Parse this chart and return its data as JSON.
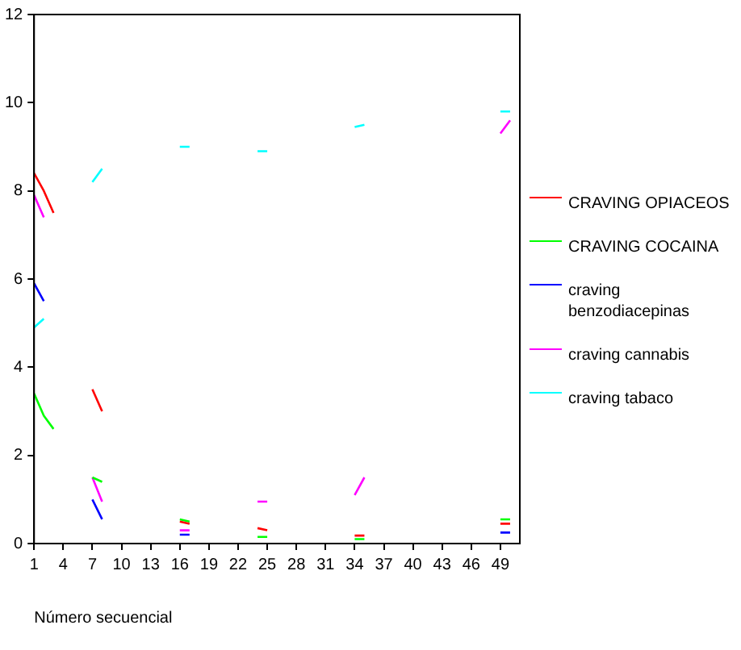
{
  "chart_data": {
    "type": "line",
    "xlabel": "Número secuencial",
    "x": [
      1,
      2,
      3,
      4,
      7,
      8,
      9,
      16,
      17,
      18,
      24,
      25,
      26,
      34,
      35,
      36,
      49,
      50
    ],
    "xlim": [
      1,
      51
    ],
    "xticks": [
      1,
      4,
      7,
      10,
      13,
      16,
      19,
      22,
      25,
      28,
      31,
      34,
      37,
      40,
      43,
      46,
      49
    ],
    "ylim": [
      0,
      12
    ],
    "yticks": [
      0,
      2,
      4,
      6,
      8,
      10,
      12
    ],
    "grid": false,
    "legend": "right",
    "marker": "none",
    "line_style": "solid",
    "series": [
      {
        "name": "CRAVING OPIACEOS",
        "color": "#ff0000",
        "values": [
          8.4,
          8.0,
          7.5,
          null,
          3.5,
          3.0,
          null,
          0.5,
          0.45,
          null,
          0.35,
          0.3,
          null,
          0.18,
          0.18,
          null,
          0.45,
          0.45
        ]
      },
      {
        "name": "CRAVING COCAINA",
        "color": "#00ff00",
        "values": [
          3.4,
          2.9,
          2.6,
          null,
          1.5,
          1.4,
          null,
          0.55,
          0.5,
          null,
          0.15,
          0.15,
          null,
          0.1,
          0.1,
          null,
          0.55,
          0.55
        ]
      },
      {
        "name": "craving benzodiacepinas",
        "color": "#0000ff",
        "values": [
          5.9,
          5.5,
          null,
          null,
          1.0,
          0.55,
          null,
          0.2,
          0.2,
          null,
          null,
          null,
          null,
          null,
          null,
          null,
          0.25,
          0.25
        ]
      },
      {
        "name": "craving cannabis",
        "color": "#ff00ff",
        "values": [
          7.9,
          7.4,
          null,
          null,
          1.5,
          0.95,
          null,
          0.3,
          0.3,
          null,
          0.95,
          0.95,
          null,
          1.1,
          1.5,
          null,
          9.3,
          9.6
        ]
      },
      {
        "name": "craving tabaco",
        "color": "#00ffff",
        "values": [
          4.9,
          5.1,
          null,
          null,
          8.2,
          8.5,
          null,
          9.0,
          9.0,
          null,
          8.9,
          8.9,
          null,
          9.45,
          9.5,
          null,
          9.8,
          9.8
        ]
      }
    ]
  }
}
